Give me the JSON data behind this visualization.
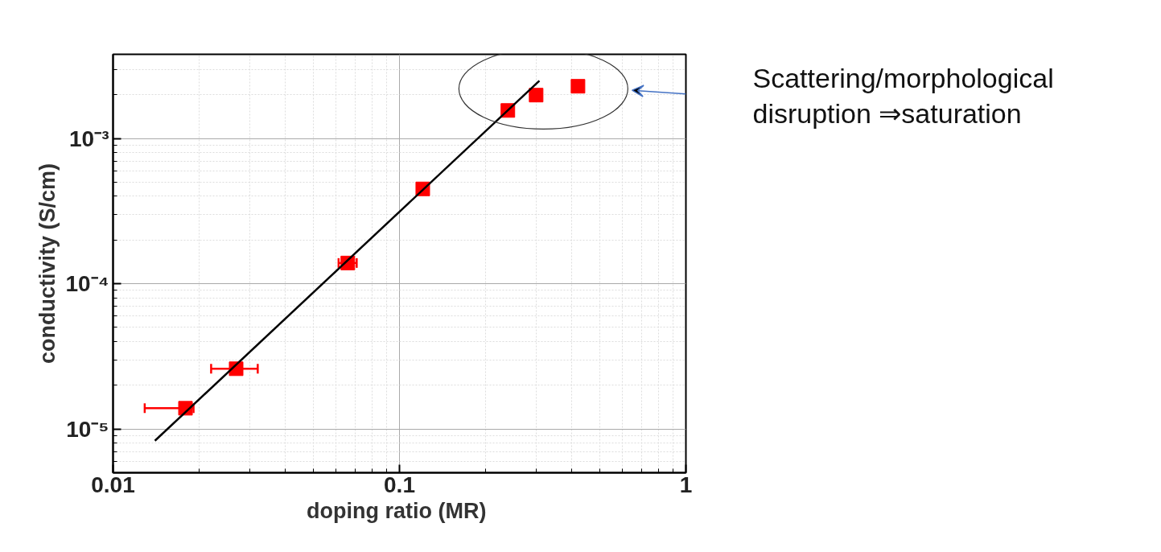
{
  "chart_data": {
    "type": "scatter",
    "xlabel": "doping ratio  (MR)",
    "ylabel": "conductivity (S/cm)",
    "log": "xy",
    "grid": true,
    "marker": "square",
    "xlim": [
      0.01,
      1
    ],
    "ylim": [
      5e-06,
      0.0038
    ],
    "xticks": [
      0.01,
      0.1,
      1
    ],
    "yticks": [
      {
        "value": 1e-05,
        "label": "10⁻⁵"
      },
      {
        "value": 0.0001,
        "label": "10⁻⁴"
      },
      {
        "value": 0.001,
        "label": "10⁻³"
      }
    ],
    "series": [
      {
        "color": "#ff0000",
        "x": [
          0.0179,
          0.0269,
          0.066,
          0.1206,
          0.239,
          0.3,
          0.42
        ],
        "values": [
          1.39e-05,
          2.6e-05,
          0.000139,
          0.00045,
          0.00156,
          0.00199,
          0.00229
        ],
        "xerrors": [
          [
            0.0129,
            0.0191
          ],
          [
            0.022,
            0.032
          ],
          [
            0.0613,
            0.0709
          ],
          [
            0.118,
            0.124
          ],
          null,
          null,
          null
        ]
      },
      {
        "type": "line",
        "color": "#000000",
        "x": [
          0.014,
          0.308
        ],
        "values": [
          8.3e-06,
          0.0025
        ],
        "line_style": "solid",
        "marker": "none"
      }
    ],
    "annotations": [
      "Scattering/morphological\ndisruption ⇒saturation"
    ]
  }
}
